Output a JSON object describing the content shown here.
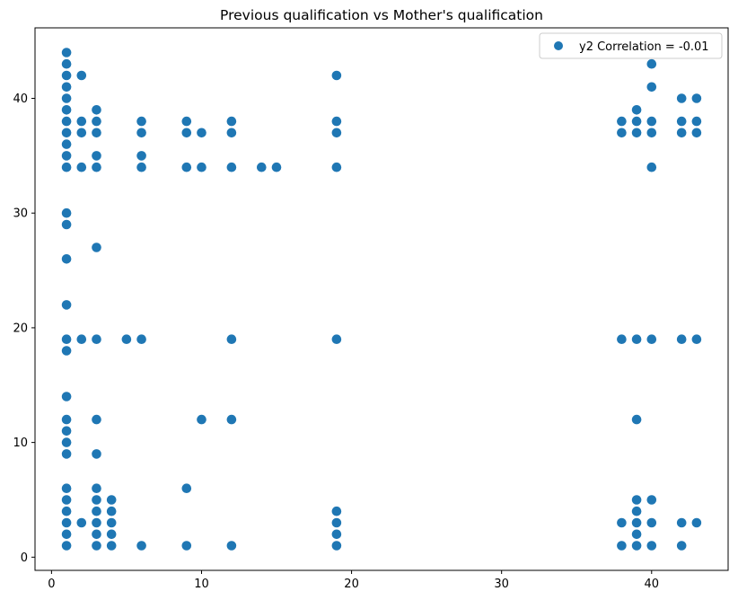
{
  "chart_data": {
    "type": "scatter",
    "title": "Previous qualification vs Mother's qualification",
    "xlabel": "",
    "ylabel": "",
    "xlim": [
      -1.1,
      45.1
    ],
    "ylim": [
      -1.15,
      46.15
    ],
    "xticks": [
      0,
      10,
      20,
      30,
      40
    ],
    "yticks": [
      0,
      10,
      20,
      30,
      40
    ],
    "grid": false,
    "legend_position": "top-right",
    "series": [
      {
        "name": "y2 Correlation = -0.01",
        "color": "#1f77b4",
        "points": [
          [
            1,
            1
          ],
          [
            1,
            2
          ],
          [
            1,
            3
          ],
          [
            1,
            4
          ],
          [
            1,
            5
          ],
          [
            1,
            6
          ],
          [
            1,
            9
          ],
          [
            1,
            10
          ],
          [
            1,
            11
          ],
          [
            1,
            12
          ],
          [
            1,
            14
          ],
          [
            1,
            18
          ],
          [
            1,
            19
          ],
          [
            1,
            22
          ],
          [
            1,
            26
          ],
          [
            1,
            29
          ],
          [
            1,
            30
          ],
          [
            1,
            34
          ],
          [
            1,
            35
          ],
          [
            1,
            36
          ],
          [
            1,
            37
          ],
          [
            1,
            38
          ],
          [
            1,
            39
          ],
          [
            1,
            40
          ],
          [
            1,
            41
          ],
          [
            1,
            42
          ],
          [
            1,
            43
          ],
          [
            1,
            44
          ],
          [
            2,
            3
          ],
          [
            2,
            19
          ],
          [
            2,
            34
          ],
          [
            2,
            37
          ],
          [
            2,
            38
          ],
          [
            2,
            42
          ],
          [
            3,
            1
          ],
          [
            3,
            2
          ],
          [
            3,
            3
          ],
          [
            3,
            4
          ],
          [
            3,
            5
          ],
          [
            3,
            6
          ],
          [
            3,
            9
          ],
          [
            3,
            12
          ],
          [
            3,
            19
          ],
          [
            3,
            27
          ],
          [
            3,
            34
          ],
          [
            3,
            35
          ],
          [
            3,
            37
          ],
          [
            3,
            38
          ],
          [
            3,
            39
          ],
          [
            4,
            1
          ],
          [
            4,
            2
          ],
          [
            4,
            3
          ],
          [
            4,
            4
          ],
          [
            4,
            5
          ],
          [
            5,
            19
          ],
          [
            6,
            1
          ],
          [
            6,
            19
          ],
          [
            6,
            34
          ],
          [
            6,
            35
          ],
          [
            6,
            37
          ],
          [
            6,
            38
          ],
          [
            9,
            1
          ],
          [
            9,
            6
          ],
          [
            9,
            34
          ],
          [
            9,
            37
          ],
          [
            9,
            38
          ],
          [
            10,
            12
          ],
          [
            10,
            34
          ],
          [
            10,
            37
          ],
          [
            12,
            1
          ],
          [
            12,
            12
          ],
          [
            12,
            19
          ],
          [
            12,
            34
          ],
          [
            12,
            37
          ],
          [
            12,
            38
          ],
          [
            14,
            34
          ],
          [
            15,
            34
          ],
          [
            19,
            1
          ],
          [
            19,
            2
          ],
          [
            19,
            3
          ],
          [
            19,
            4
          ],
          [
            19,
            19
          ],
          [
            19,
            34
          ],
          [
            19,
            37
          ],
          [
            19,
            38
          ],
          [
            19,
            42
          ],
          [
            38,
            1
          ],
          [
            38,
            3
          ],
          [
            38,
            19
          ],
          [
            38,
            37
          ],
          [
            38,
            38
          ],
          [
            39,
            1
          ],
          [
            39,
            2
          ],
          [
            39,
            3
          ],
          [
            39,
            4
          ],
          [
            39,
            5
          ],
          [
            39,
            12
          ],
          [
            39,
            19
          ],
          [
            39,
            37
          ],
          [
            39,
            38
          ],
          [
            39,
            39
          ],
          [
            40,
            1
          ],
          [
            40,
            3
          ],
          [
            40,
            5
          ],
          [
            40,
            19
          ],
          [
            40,
            34
          ],
          [
            40,
            37
          ],
          [
            40,
            38
          ],
          [
            40,
            41
          ],
          [
            40,
            43
          ],
          [
            42,
            1
          ],
          [
            42,
            3
          ],
          [
            42,
            19
          ],
          [
            42,
            37
          ],
          [
            42,
            38
          ],
          [
            42,
            40
          ],
          [
            43,
            3
          ],
          [
            43,
            19
          ],
          [
            43,
            37
          ],
          [
            43,
            38
          ],
          [
            43,
            40
          ]
        ]
      }
    ]
  }
}
